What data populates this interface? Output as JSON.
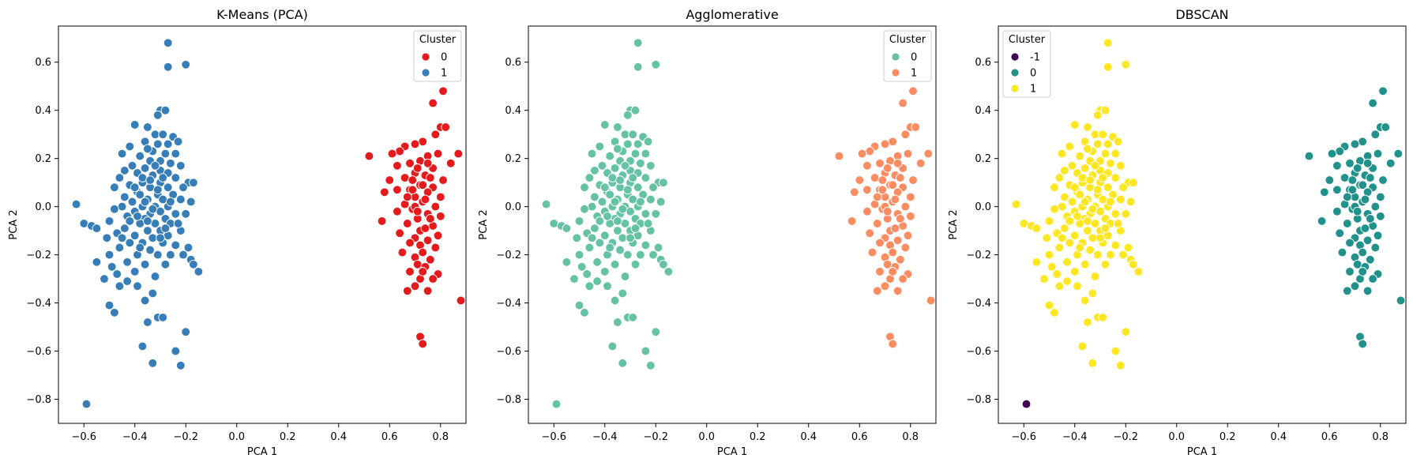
{
  "chart_data": [
    {
      "type": "scatter",
      "title": "K-Means (PCA)",
      "xlabel": "PCA 1",
      "ylabel": "PCA 2",
      "xlim": [
        -0.7,
        0.9
      ],
      "ylim": [
        -0.9,
        0.75
      ],
      "xticks": [
        -0.6,
        -0.4,
        -0.2,
        0.0,
        0.2,
        0.4,
        0.6,
        0.8
      ],
      "xtick_labels": [
        "−0.6",
        "−0.4",
        "−0.2",
        "0.0",
        "0.2",
        "0.4",
        "0.6",
        "0.8"
      ],
      "yticks": [
        -0.8,
        -0.6,
        -0.4,
        -0.2,
        0.0,
        0.2,
        0.4,
        0.6
      ],
      "ytick_labels": [
        "−0.8",
        "−0.6",
        "−0.4",
        "−0.2",
        "0.0",
        "0.2",
        "0.4",
        "0.6"
      ],
      "grid": false,
      "legend": {
        "title": "Cluster",
        "position": "top-right",
        "labels": [
          "0",
          "1"
        ]
      },
      "colors": {
        "0": "#e41a1c",
        "1": "#377eb8"
      },
      "left_group_cluster": "1",
      "right_group_cluster": "0",
      "outlier_cluster": "1"
    },
    {
      "type": "scatter",
      "title": "Agglomerative",
      "xlabel": "PCA 1",
      "ylabel": "PCA 2",
      "xlim": [
        -0.7,
        0.9
      ],
      "ylim": [
        -0.9,
        0.75
      ],
      "xticks": [
        -0.6,
        -0.4,
        -0.2,
        0.0,
        0.2,
        0.4,
        0.6,
        0.8
      ],
      "xtick_labels": [
        "−0.6",
        "−0.4",
        "−0.2",
        "0.0",
        "0.2",
        "0.4",
        "0.6",
        "0.8"
      ],
      "yticks": [
        -0.8,
        -0.6,
        -0.4,
        -0.2,
        0.0,
        0.2,
        0.4,
        0.6
      ],
      "ytick_labels": [
        "−0.8",
        "−0.6",
        "−0.4",
        "−0.2",
        "0.0",
        "0.2",
        "0.4",
        "0.6"
      ],
      "grid": false,
      "legend": {
        "title": "Cluster",
        "position": "top-right",
        "labels": [
          "0",
          "1"
        ]
      },
      "colors": {
        "0": "#66c2a5",
        "1": "#fc8d62"
      },
      "left_group_cluster": "0",
      "right_group_cluster": "1",
      "outlier_cluster": "0"
    },
    {
      "type": "scatter",
      "title": "DBSCAN",
      "xlabel": "PCA 1",
      "ylabel": "PCA 2",
      "xlim": [
        -0.7,
        0.9
      ],
      "ylim": [
        -0.9,
        0.75
      ],
      "xticks": [
        -0.6,
        -0.4,
        -0.2,
        0.0,
        0.2,
        0.4,
        0.6,
        0.8
      ],
      "xtick_labels": [
        "−0.6",
        "−0.4",
        "−0.2",
        "0.0",
        "0.2",
        "0.4",
        "0.6",
        "0.8"
      ],
      "yticks": [
        -0.8,
        -0.6,
        -0.4,
        -0.2,
        0.0,
        0.2,
        0.4,
        0.6
      ],
      "ytick_labels": [
        "−0.8",
        "−0.6",
        "−0.4",
        "−0.2",
        "0.0",
        "0.2",
        "0.4",
        "0.6"
      ],
      "grid": false,
      "legend": {
        "title": "Cluster",
        "position": "top-left",
        "labels": [
          "-1",
          "0",
          "1"
        ]
      },
      "colors": {
        "-1": "#440154",
        "0": "#21918c",
        "1": "#fde725"
      },
      "left_group_cluster": "1",
      "right_group_cluster": "0",
      "outlier_cluster": "-1"
    }
  ],
  "points": {
    "left": [
      [
        -0.27,
        0.68
      ],
      [
        -0.27,
        0.58
      ],
      [
        -0.2,
        0.59
      ],
      [
        -0.3,
        0.4
      ],
      [
        -0.28,
        0.4
      ],
      [
        -0.31,
        0.38
      ],
      [
        -0.35,
        0.33
      ],
      [
        -0.4,
        0.34
      ],
      [
        -0.32,
        0.3
      ],
      [
        -0.29,
        0.3
      ],
      [
        -0.25,
        0.29
      ],
      [
        -0.36,
        0.27
      ],
      [
        -0.31,
        0.26
      ],
      [
        -0.27,
        0.26
      ],
      [
        -0.23,
        0.27
      ],
      [
        -0.42,
        0.25
      ],
      [
        -0.33,
        0.23
      ],
      [
        -0.28,
        0.22
      ],
      [
        -0.24,
        0.22
      ],
      [
        -0.45,
        0.22
      ],
      [
        -0.38,
        0.21
      ],
      [
        -0.3,
        0.19
      ],
      [
        -0.34,
        0.19
      ],
      [
        -0.26,
        0.18
      ],
      [
        -0.22,
        0.17
      ],
      [
        -0.41,
        0.17
      ],
      [
        -0.44,
        0.15
      ],
      [
        -0.36,
        0.16
      ],
      [
        -0.3,
        0.15
      ],
      [
        -0.39,
        0.14
      ],
      [
        -0.27,
        0.14
      ],
      [
        -0.33,
        0.13
      ],
      [
        -0.46,
        0.12
      ],
      [
        -0.24,
        0.12
      ],
      [
        -0.19,
        0.1
      ],
      [
        -0.17,
        0.1
      ],
      [
        -0.37,
        0.1
      ],
      [
        -0.3,
        0.1
      ],
      [
        -0.42,
        0.09
      ],
      [
        -0.34,
        0.08
      ],
      [
        -0.27,
        0.08
      ],
      [
        -0.21,
        0.08
      ],
      [
        -0.48,
        0.08
      ],
      [
        -0.39,
        0.06
      ],
      [
        -0.31,
        0.05
      ],
      [
        -0.25,
        0.05
      ],
      [
        -0.44,
        0.04
      ],
      [
        -0.35,
        0.03
      ],
      [
        -0.29,
        0.03
      ],
      [
        -0.22,
        0.03
      ],
      [
        -0.18,
        0.02
      ],
      [
        -0.41,
        0.02
      ],
      [
        -0.37,
        0.0
      ],
      [
        -0.32,
        0.0
      ],
      [
        -0.27,
        0.0
      ],
      [
        -0.45,
        0.0
      ],
      [
        -0.63,
        0.01
      ],
      [
        -0.48,
        -0.01
      ],
      [
        -0.4,
        -0.02
      ],
      [
        -0.34,
        -0.03
      ],
      [
        -0.3,
        -0.02
      ],
      [
        -0.24,
        -0.03
      ],
      [
        -0.2,
        -0.03
      ],
      [
        -0.43,
        -0.04
      ],
      [
        -0.36,
        -0.05
      ],
      [
        -0.28,
        -0.05
      ],
      [
        -0.5,
        -0.06
      ],
      [
        -0.38,
        -0.07
      ],
      [
        -0.32,
        -0.07
      ],
      [
        -0.26,
        -0.07
      ],
      [
        -0.6,
        -0.07
      ],
      [
        -0.57,
        -0.08
      ],
      [
        -0.55,
        -0.09
      ],
      [
        -0.44,
        -0.09
      ],
      [
        -0.35,
        -0.1
      ],
      [
        -0.3,
        -0.1
      ],
      [
        -0.22,
        -0.1
      ],
      [
        -0.47,
        -0.11
      ],
      [
        -0.4,
        -0.12
      ],
      [
        -0.33,
        -0.13
      ],
      [
        -0.27,
        -0.12
      ],
      [
        -0.51,
        -0.13
      ],
      [
        -0.42,
        -0.15
      ],
      [
        -0.37,
        -0.15
      ],
      [
        -0.29,
        -0.15
      ],
      [
        -0.24,
        -0.16
      ],
      [
        -0.19,
        -0.17
      ],
      [
        -0.46,
        -0.17
      ],
      [
        -0.34,
        -0.18
      ],
      [
        -0.31,
        -0.2
      ],
      [
        -0.26,
        -0.2
      ],
      [
        -0.39,
        -0.2
      ],
      [
        -0.5,
        -0.2
      ],
      [
        -0.21,
        -0.2
      ],
      [
        -0.18,
        -0.22
      ],
      [
        -0.55,
        -0.23
      ],
      [
        -0.43,
        -0.23
      ],
      [
        -0.36,
        -0.24
      ],
      [
        -0.28,
        -0.24
      ],
      [
        -0.17,
        -0.24
      ],
      [
        -0.49,
        -0.25
      ],
      [
        -0.15,
        -0.27
      ],
      [
        -0.4,
        -0.27
      ],
      [
        -0.47,
        -0.28
      ],
      [
        -0.32,
        -0.29
      ],
      [
        -0.43,
        -0.31
      ],
      [
        -0.52,
        -0.3
      ],
      [
        -0.46,
        -0.33
      ],
      [
        -0.39,
        -0.33
      ],
      [
        -0.33,
        -0.36
      ],
      [
        -0.36,
        -0.39
      ],
      [
        -0.5,
        -0.41
      ],
      [
        -0.48,
        -0.44
      ],
      [
        -0.31,
        -0.46
      ],
      [
        -0.29,
        -0.46
      ],
      [
        -0.35,
        -0.48
      ],
      [
        -0.2,
        -0.52
      ],
      [
        -0.37,
        -0.58
      ],
      [
        -0.24,
        -0.6
      ],
      [
        -0.33,
        -0.65
      ],
      [
        -0.22,
        -0.66
      ],
      [
        -0.38,
        0.05
      ],
      [
        -0.36,
        0.02
      ],
      [
        -0.33,
        -0.01
      ],
      [
        -0.39,
        -0.04
      ],
      [
        -0.35,
        -0.06
      ],
      [
        -0.31,
        0.07
      ],
      [
        -0.37,
        0.12
      ],
      [
        -0.28,
        -0.09
      ],
      [
        -0.42,
        -0.06
      ],
      [
        -0.34,
        0.11
      ],
      [
        -0.3,
        -0.13
      ],
      [
        -0.26,
        0.02
      ],
      [
        -0.4,
        0.08
      ],
      [
        -0.32,
        0.17
      ],
      [
        -0.38,
        -0.17
      ],
      [
        -0.23,
        -0.07
      ],
      [
        -0.45,
        -0.13
      ],
      [
        -0.29,
        0.12
      ],
      [
        -0.35,
        0.24
      ]
    ],
    "right": [
      [
        0.81,
        0.48
      ],
      [
        0.77,
        0.43
      ],
      [
        0.8,
        0.33
      ],
      [
        0.82,
        0.33
      ],
      [
        0.78,
        0.3
      ],
      [
        0.73,
        0.27
      ],
      [
        0.7,
        0.26
      ],
      [
        0.66,
        0.25
      ],
      [
        0.64,
        0.23
      ],
      [
        0.61,
        0.22
      ],
      [
        0.52,
        0.21
      ],
      [
        0.79,
        0.22
      ],
      [
        0.87,
        0.22
      ],
      [
        0.75,
        0.21
      ],
      [
        0.72,
        0.19
      ],
      [
        0.68,
        0.18
      ],
      [
        0.84,
        0.18
      ],
      [
        0.63,
        0.17
      ],
      [
        0.77,
        0.16
      ],
      [
        0.7,
        0.14
      ],
      [
        0.74,
        0.13
      ],
      [
        0.66,
        0.12
      ],
      [
        0.6,
        0.11
      ],
      [
        0.81,
        0.11
      ],
      [
        0.72,
        0.09
      ],
      [
        0.77,
        0.08
      ],
      [
        0.68,
        0.07
      ],
      [
        0.63,
        0.07
      ],
      [
        0.75,
        0.06
      ],
      [
        0.58,
        0.06
      ],
      [
        0.7,
        0.04
      ],
      [
        0.8,
        0.04
      ],
      [
        0.73,
        0.02
      ],
      [
        0.66,
        0.01
      ],
      [
        0.78,
        0.0
      ],
      [
        0.69,
        -0.01
      ],
      [
        0.63,
        -0.02
      ],
      [
        0.75,
        -0.03
      ],
      [
        0.8,
        -0.04
      ],
      [
        0.71,
        -0.05
      ],
      [
        0.57,
        -0.06
      ],
      [
        0.67,
        -0.07
      ],
      [
        0.77,
        -0.08
      ],
      [
        0.72,
        -0.1
      ],
      [
        0.64,
        -0.11
      ],
      [
        0.79,
        -0.12
      ],
      [
        0.7,
        -0.13
      ],
      [
        0.75,
        -0.14
      ],
      [
        0.72,
        -0.16
      ],
      [
        0.78,
        -0.17
      ],
      [
        0.65,
        -0.19
      ],
      [
        0.73,
        -0.19
      ],
      [
        0.7,
        -0.21
      ],
      [
        0.76,
        -0.22
      ],
      [
        0.71,
        -0.24
      ],
      [
        0.74,
        -0.25
      ],
      [
        0.68,
        -0.27
      ],
      [
        0.79,
        -0.28
      ],
      [
        0.72,
        -0.3
      ],
      [
        0.77,
        -0.3
      ],
      [
        0.7,
        -0.33
      ],
      [
        0.67,
        -0.35
      ],
      [
        0.75,
        -0.35
      ],
      [
        0.88,
        -0.39
      ],
      [
        0.72,
        -0.54
      ],
      [
        0.73,
        -0.57
      ],
      [
        0.7,
        0.0
      ],
      [
        0.74,
        0.03
      ],
      [
        0.67,
        0.04
      ],
      [
        0.73,
        0.09
      ],
      [
        0.69,
        0.11
      ],
      [
        0.76,
        -0.05
      ],
      [
        0.71,
        -0.02
      ],
      [
        0.74,
        -0.09
      ],
      [
        0.68,
        -0.15
      ],
      [
        0.76,
        0.12
      ],
      [
        0.71,
        0.16
      ],
      [
        0.73,
        -0.27
      ],
      [
        0.69,
        0.07
      ],
      [
        0.75,
        0.18
      ]
    ],
    "outlier": [
      [
        -0.59,
        -0.82
      ]
    ]
  }
}
